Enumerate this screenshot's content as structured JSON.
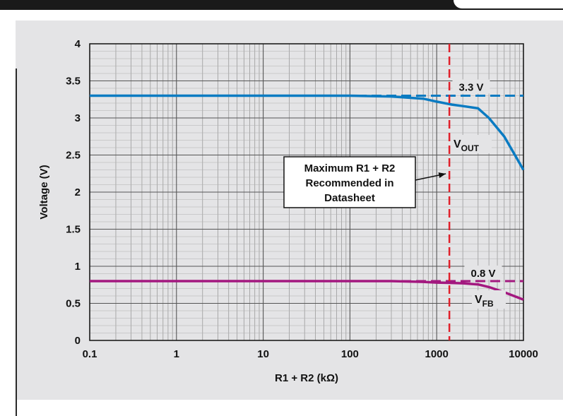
{
  "chart_data": {
    "type": "line",
    "xlabel": "R1 + R2 (kΩ)",
    "ylabel": "Voltage (V)",
    "xscale": "log",
    "xlim": [
      0.1,
      10000
    ],
    "ylim": [
      0,
      4
    ],
    "grid": true,
    "x_ticks": [
      "0.1",
      "1",
      "10",
      "100",
      "1000",
      "10000"
    ],
    "y_ticks": [
      "0",
      "0.5",
      "1",
      "1.5",
      "2",
      "2.5",
      "3",
      "3.5",
      "4"
    ],
    "series": [
      {
        "name": "VOUT",
        "color": "#0a7bc2",
        "x": [
          0.1,
          1,
          10,
          100,
          300,
          700,
          1000,
          1500,
          2000,
          3000,
          4000,
          6000,
          10000
        ],
        "y": [
          3.3,
          3.3,
          3.3,
          3.3,
          3.29,
          3.26,
          3.22,
          3.18,
          3.16,
          3.13,
          3.0,
          2.75,
          2.3
        ]
      },
      {
        "name": "VFB",
        "color": "#a3187f",
        "x": [
          0.1,
          1,
          10,
          100,
          300,
          700,
          1000,
          1500,
          2000,
          3000,
          4000,
          6000,
          10000
        ],
        "y": [
          0.8,
          0.8,
          0.8,
          0.8,
          0.8,
          0.79,
          0.78,
          0.775,
          0.77,
          0.755,
          0.72,
          0.65,
          0.55
        ]
      }
    ],
    "reference_lines": [
      {
        "label": "3.3 V",
        "y": 3.3,
        "color": "#0a7bc2"
      },
      {
        "label": "0.8 V",
        "y": 0.8,
        "color": "#a3187f"
      }
    ],
    "vertical_marker": {
      "x": 1400,
      "color": "#e0202a"
    },
    "series_labels": [
      {
        "main": "V",
        "sub": "OUT"
      },
      {
        "main": "V",
        "sub": "FB"
      }
    ],
    "annotation": {
      "lines": [
        "Maximum R1 + R2",
        "Recommended in",
        "Datasheet"
      ]
    }
  }
}
